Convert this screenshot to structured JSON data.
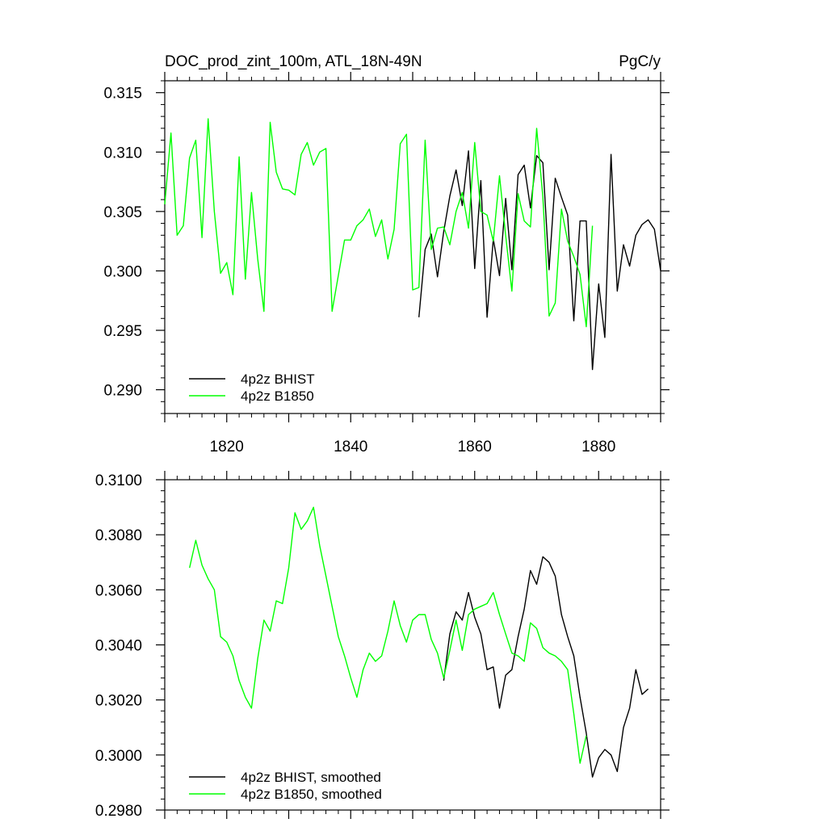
{
  "chart_data": [
    {
      "type": "line",
      "title": "DOC_prod_zint_100m, ATL_18N-49N",
      "units": "PgC/y",
      "xlim": [
        1810,
        1890
      ],
      "ylim": [
        0.288,
        0.316
      ],
      "x_ticks": [
        1820,
        1840,
        1860,
        1880
      ],
      "y_ticks": [
        0.29,
        0.295,
        0.3,
        0.305,
        0.31,
        0.315
      ],
      "y_tick_labels": [
        "0.290",
        "0.295",
        "0.300",
        "0.305",
        "0.310",
        "0.315"
      ],
      "grid": false,
      "legend_position": "bottom-left",
      "series": [
        {
          "name": "4p2z BHIST",
          "color": "#000000",
          "x_start": 1851,
          "values": [
            0.2961,
            0.3018,
            0.3031,
            0.2995,
            0.3033,
            0.3063,
            0.3085,
            0.3055,
            0.3101,
            0.3002,
            0.3076,
            0.2961,
            0.3027,
            0.2996,
            0.3061,
            0.3001,
            0.3081,
            0.3089,
            0.3053,
            0.3097,
            0.3091,
            0.3001,
            0.3078,
            0.3062,
            0.3047,
            0.2958,
            0.3042,
            0.3042,
            0.2917,
            0.2989,
            0.2944,
            0.3098,
            0.2983,
            0.3022,
            0.3004,
            0.303,
            0.3039,
            0.3043,
            0.3035,
            0.3
          ]
        },
        {
          "name": "4p2z B1850",
          "color": "#00ff00",
          "x_start": 1810,
          "values": [
            0.3056,
            0.3116,
            0.303,
            0.3038,
            0.3095,
            0.311,
            0.3028,
            0.3128,
            0.305,
            0.2998,
            0.3007,
            0.298,
            0.3096,
            0.2993,
            0.3066,
            0.301,
            0.2966,
            0.3125,
            0.3083,
            0.3069,
            0.3068,
            0.3064,
            0.3098,
            0.3108,
            0.3089,
            0.31,
            0.3103,
            0.2966,
            0.2996,
            0.3026,
            0.3026,
            0.3038,
            0.3043,
            0.3052,
            0.3029,
            0.3043,
            0.301,
            0.3035,
            0.3107,
            0.3115,
            0.2984,
            0.2986,
            0.311,
            0.3018,
            0.3036,
            0.3037,
            0.3022,
            0.305,
            0.3066,
            0.3036,
            0.3108,
            0.305,
            0.3047,
            0.3025,
            0.308,
            0.303,
            0.2983,
            0.3065,
            0.3042,
            0.3037,
            0.312,
            0.3062,
            0.2962,
            0.2973,
            0.3052,
            0.3025,
            0.3012,
            0.2997,
            0.2953,
            0.3038
          ]
        }
      ]
    },
    {
      "type": "line",
      "title": "",
      "xlim": [
        1810,
        1890
      ],
      "ylim": [
        0.298,
        0.31
      ],
      "x_ticks": [
        1820,
        1840,
        1860,
        1880
      ],
      "y_ticks": [
        0.298,
        0.3,
        0.302,
        0.304,
        0.306,
        0.308,
        0.31
      ],
      "y_tick_labels": [
        "0.2980",
        "0.3000",
        "0.3020",
        "0.3040",
        "0.3060",
        "0.3080",
        "0.3100"
      ],
      "grid": false,
      "legend_position": "bottom-left",
      "series": [
        {
          "name": "4p2z BHIST, smoothed",
          "color": "#000000",
          "x_start": 1855,
          "values": [
            0.3027,
            0.3044,
            0.3052,
            0.3049,
            0.3059,
            0.305,
            0.3044,
            0.3031,
            0.3032,
            0.3017,
            0.3029,
            0.3031,
            0.3043,
            0.3053,
            0.3067,
            0.3062,
            0.3072,
            0.307,
            0.3065,
            0.3051,
            0.3043,
            0.3036,
            0.3021,
            0.3008,
            0.2992,
            0.2999,
            0.3002,
            0.3,
            0.2994,
            0.301,
            0.3017,
            0.3031,
            0.3022,
            0.3024
          ]
        },
        {
          "name": "4p2z B1850, smoothed",
          "color": "#00ff00",
          "x_start": 1814,
          "values": [
            0.3068,
            0.3078,
            0.3069,
            0.3064,
            0.306,
            0.3043,
            0.3041,
            0.3036,
            0.3027,
            0.3021,
            0.3017,
            0.3035,
            0.3049,
            0.3045,
            0.3056,
            0.3055,
            0.3068,
            0.3088,
            0.3082,
            0.3085,
            0.309,
            0.3076,
            0.3065,
            0.3054,
            0.3043,
            0.3036,
            0.3028,
            0.3021,
            0.3031,
            0.3037,
            0.3034,
            0.3036,
            0.3045,
            0.3056,
            0.3047,
            0.3041,
            0.3049,
            0.3051,
            0.3051,
            0.3042,
            0.3037,
            0.3028,
            0.3038,
            0.3049,
            0.3038,
            0.3051,
            0.3053,
            0.3054,
            0.3055,
            0.3059,
            0.3051,
            0.3044,
            0.3037,
            0.3036,
            0.3034,
            0.3048,
            0.3046,
            0.3039,
            0.3037,
            0.3036,
            0.3034,
            0.3031,
            0.3015,
            0.2997,
            0.3007
          ]
        }
      ]
    }
  ]
}
